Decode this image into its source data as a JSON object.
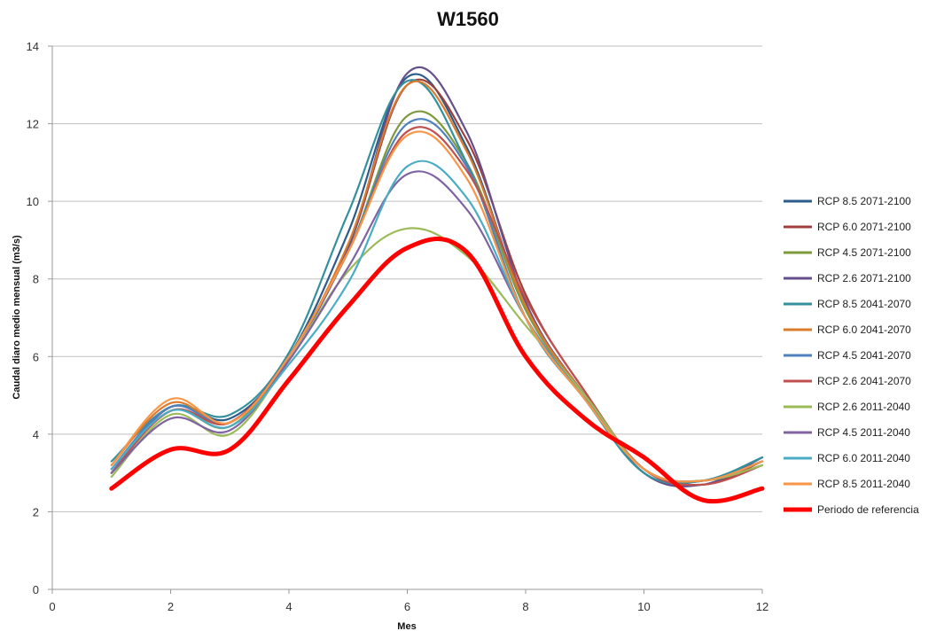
{
  "chart_data": {
    "type": "line",
    "title": "W1560",
    "xlabel": "Mes",
    "ylabel": "Caudal diaro medio mensual (m3/s)",
    "xlim": [
      0,
      12
    ],
    "ylim": [
      0,
      14
    ],
    "x_ticks": [
      0,
      2,
      4,
      6,
      8,
      10,
      12
    ],
    "y_ticks": [
      0,
      2,
      4,
      6,
      8,
      10,
      12,
      14
    ],
    "grid": "horizontal",
    "legend": "right",
    "x": [
      1,
      2,
      3,
      4,
      5,
      6,
      7,
      8,
      9,
      10,
      11,
      12
    ],
    "series": [
      {
        "name": "RCP 8.5 2071-2100",
        "color": "#2e5c8a",
        "values": [
          3.1,
          4.7,
          4.4,
          6.0,
          9.2,
          13.2,
          11.4,
          7.3,
          5.0,
          3.0,
          2.8,
          3.4
        ]
      },
      {
        "name": "RCP 6.0 2071-2100",
        "color": "#a0403c",
        "values": [
          3.0,
          4.6,
          4.3,
          6.0,
          8.8,
          13.0,
          11.6,
          7.6,
          5.1,
          3.1,
          2.7,
          3.3
        ]
      },
      {
        "name": "RCP 4.5 2071-2100",
        "color": "#7d9a3c",
        "values": [
          3.0,
          4.6,
          4.2,
          6.0,
          8.7,
          12.2,
          11.0,
          7.2,
          5.0,
          3.1,
          2.8,
          3.3
        ]
      },
      {
        "name": "RCP 2.6 2071-2100",
        "color": "#65508c",
        "values": [
          3.0,
          4.7,
          4.3,
          6.0,
          8.8,
          13.3,
          11.8,
          7.4,
          5.0,
          3.0,
          2.7,
          3.4
        ]
      },
      {
        "name": "RCP 8.5 2041-2070",
        "color": "#35909d",
        "values": [
          3.3,
          4.7,
          4.5,
          6.1,
          9.7,
          13.1,
          11.0,
          7.0,
          4.9,
          3.0,
          2.8,
          3.4
        ]
      },
      {
        "name": "RCP 6.0 2041-2070",
        "color": "#db7b2e",
        "values": [
          3.2,
          4.8,
          4.3,
          6.0,
          8.9,
          13.0,
          11.3,
          7.3,
          5.0,
          3.1,
          2.8,
          3.3
        ]
      },
      {
        "name": "RCP 4.5 2041-2070",
        "color": "#4f81bd",
        "values": [
          3.1,
          4.7,
          4.3,
          6.0,
          8.7,
          12.0,
          10.9,
          7.0,
          5.0,
          3.1,
          2.8,
          3.3
        ]
      },
      {
        "name": "RCP 2.6 2041-2070",
        "color": "#c0504d",
        "values": [
          3.0,
          4.6,
          4.3,
          6.0,
          8.7,
          11.8,
          10.8,
          7.5,
          5.1,
          3.1,
          2.7,
          3.2
        ]
      },
      {
        "name": "RCP 2.6 2011-2040",
        "color": "#9bbb59",
        "values": [
          2.9,
          4.5,
          4.0,
          5.9,
          8.2,
          9.3,
          8.6,
          6.8,
          5.0,
          3.1,
          2.8,
          3.2
        ]
      },
      {
        "name": "RCP 4.5 2011-2040",
        "color": "#8064a2",
        "values": [
          3.0,
          4.4,
          4.1,
          5.9,
          8.3,
          10.7,
          9.8,
          7.0,
          4.9,
          3.1,
          2.8,
          3.3
        ]
      },
      {
        "name": "RCP 6.0 2011-2040",
        "color": "#4bacc6",
        "values": [
          3.1,
          4.6,
          4.2,
          5.8,
          7.9,
          10.9,
          10.1,
          7.0,
          4.9,
          3.1,
          2.8,
          3.3
        ]
      },
      {
        "name": "RCP 8.5 2011-2040",
        "color": "#f79646",
        "values": [
          3.2,
          4.9,
          4.3,
          6.0,
          8.7,
          11.7,
          10.6,
          7.0,
          4.9,
          3.1,
          2.8,
          3.3
        ]
      },
      {
        "name": "Periodo de referencia",
        "color": "#ff0000",
        "values": [
          2.6,
          3.6,
          3.6,
          5.4,
          7.3,
          8.8,
          8.7,
          6.0,
          4.4,
          3.4,
          2.3,
          2.6
        ],
        "emphasis": true
      }
    ]
  }
}
